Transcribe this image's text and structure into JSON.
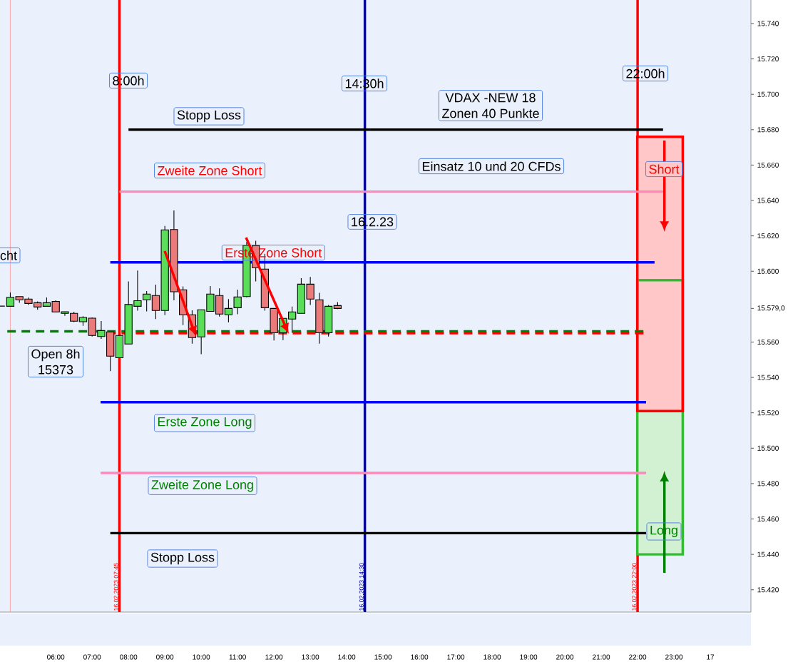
{
  "chart_data": {
    "type": "candlestick",
    "x": [
      "2023-02-16T04:30",
      "2023-02-16T04:45",
      "2023-02-16T05:00",
      "2023-02-16T05:15",
      "2023-02-16T05:30",
      "2023-02-16T05:45",
      "2023-02-16T06:00",
      "2023-02-16T06:15",
      "2023-02-16T06:30",
      "2023-02-16T06:45",
      "2023-02-16T07:00",
      "2023-02-16T07:15",
      "2023-02-16T07:30",
      "2023-02-16T07:45",
      "2023-02-16T08:00",
      "2023-02-16T08:15",
      "2023-02-16T08:30",
      "2023-02-16T08:45",
      "2023-02-16T09:00",
      "2023-02-16T09:15",
      "2023-02-16T09:30",
      "2023-02-16T09:45",
      "2023-02-16T10:00",
      "2023-02-16T10:15",
      "2023-02-16T10:30",
      "2023-02-16T10:45",
      "2023-02-16T11:00",
      "2023-02-16T11:15",
      "2023-02-16T11:30",
      "2023-02-16T11:45",
      "2023-02-16T12:00",
      "2023-02-16T12:15",
      "2023-02-16T12:30",
      "2023-02-16T12:45",
      "2023-02-16T13:00",
      "2023-02-16T13:15",
      "2023-02-16T13:30",
      "2023-02-16T13:45"
    ],
    "ohlc": [
      [
        15580.3,
        15580.3,
        15580.3,
        15580.3
      ],
      [
        15580.2,
        15588.0,
        15580.2,
        15585.3
      ],
      [
        15585.7,
        15585.7,
        15582.2,
        15583.9
      ],
      [
        15584.3,
        15585.2,
        15581.0,
        15581.8
      ],
      [
        15582.2,
        15583.0,
        15578.2,
        15579.8
      ],
      [
        15580.2,
        15585.2,
        15579.9,
        15582.2
      ],
      [
        15583.0,
        15583.6,
        15576.9,
        15577.0
      ],
      [
        15576.2,
        15577.1,
        15574.8,
        15577.1
      ],
      [
        15576.2,
        15577.1,
        15571.3,
        15571.8
      ],
      [
        15571.5,
        15574.6,
        15569.2,
        15573.9
      ],
      [
        15573.5,
        15573.9,
        15563.1,
        15563.7
      ],
      [
        15563.1,
        15571.9,
        15561.8,
        15566.5
      ],
      [
        15565.7,
        15565.7,
        15543.6,
        15552.0
      ],
      [
        15551.1,
        15563.7,
        15551.1,
        15563.7
      ],
      [
        15558.9,
        15594.3,
        15558.9,
        15581.2
      ],
      [
        15580.2,
        15600.4,
        15577.7,
        15583.4
      ],
      [
        15583.9,
        15588.8,
        15577.3,
        15587.1
      ],
      [
        15586.3,
        15592.4,
        15573.0,
        15577.8
      ],
      [
        15577.8,
        15625.6,
        15575.2,
        15623.4
      ],
      [
        15623.6,
        15634.4,
        15583.6,
        15588.4
      ],
      [
        15589.5,
        15591.4,
        15569.6,
        15575.4
      ],
      [
        15575.4,
        15577.9,
        15559.1,
        15562.5
      ],
      [
        15562.9,
        15578.2,
        15553.1,
        15578.2
      ],
      [
        15577.3,
        15591.6,
        15577.3,
        15587.1
      ],
      [
        15586.3,
        15590.3,
        15574.4,
        15575.8
      ],
      [
        15575.4,
        15584.3,
        15571.2,
        15579.0
      ],
      [
        15579.4,
        15589.6,
        15575.7,
        15585.5
      ],
      [
        15585.7,
        15616.5,
        15585.3,
        15614.6
      ],
      [
        15614.5,
        15617.2,
        15594.3,
        15602.0
      ],
      [
        15601.2,
        15609.9,
        15577.7,
        15579.4
      ],
      [
        15579.0,
        15579.0,
        15560.9,
        15565.2
      ],
      [
        15565.2,
        15573.4,
        15561.1,
        15573.4
      ],
      [
        15573.0,
        15580.0,
        15565.2,
        15577.0
      ],
      [
        15576.2,
        15596.1,
        15576.2,
        15592.7
      ],
      [
        15592.7,
        15596.8,
        15581.0,
        15584.3
      ],
      [
        15583.9,
        15587.8,
        15559.1,
        15565.2
      ],
      [
        15565.2,
        15581.0,
        15563.1,
        15580.2
      ],
      [
        15580.6,
        15582.6,
        15578.6,
        15579.0
      ]
    ],
    "colors": [
      "#000000",
      "#5ade5a",
      "#eb7b7b",
      "#eb7b7b",
      "#eb7b7b",
      "#5ade5a",
      "#eb7b7b",
      "#5ade5a",
      "#eb7b7b",
      "#5ade5a",
      "#eb7b7b",
      "#5ade5a",
      "#eb7b7b",
      "#5ade5a",
      "#5ade5a",
      "#5ade5a",
      "#5ade5a",
      "#eb7b7b",
      "#5ade5a",
      "#eb7b7b",
      "#eb7b7b",
      "#eb7b7b",
      "#5ade5a",
      "#5ade5a",
      "#eb7b7b",
      "#5ade5a",
      "#5ade5a",
      "#5ade5a",
      "#eb7b7b",
      "#eb7b7b",
      "#eb7b7b",
      "#5ade5a",
      "#5ade5a",
      "#5ade5a",
      "#eb7b7b",
      "#eb7b7b",
      "#5ade5a",
      "#eb7b7b"
    ],
    "series": [
      {
        "type": "bar",
        "color": "#33bb33",
        "x": [
          "2023-02-16T22:37"
        ],
        "base": [
          15440
        ],
        "values": [
          155
        ]
      },
      {
        "type": "bar",
        "color": "#ff0000",
        "x": [
          "2023-02-16T22:37"
        ],
        "base": [
          15521
        ],
        "values": [
          155
        ]
      },
      {
        "type": "line",
        "color": "#000000",
        "x": [
          "2023-02-16T08:00",
          "2023-02-16T22:42"
        ],
        "values": [
          15680,
          15680
        ]
      },
      {
        "type": "line",
        "color": "#ff88bb",
        "x": [
          "2023-02-16T07:45",
          "2023-02-16T22:42"
        ],
        "values": [
          15645,
          15645
        ]
      },
      {
        "type": "line",
        "color": "#0000ff",
        "x": [
          "2023-02-16T07:30",
          "2023-02-16T22:28"
        ],
        "values": [
          15605,
          15605
        ]
      },
      {
        "type": "line",
        "color": "#008000",
        "line_style": "dashed",
        "x": [
          "2023-02-16T04:40",
          "2023-02-16T22:12"
        ],
        "values": [
          15566,
          15566
        ]
      },
      {
        "type": "line",
        "color": "#ff0000",
        "line_style": "dashed",
        "x": [
          "2023-02-16T07:25",
          "2023-02-16T22:12"
        ],
        "values": [
          15565,
          15565
        ]
      },
      {
        "type": "line",
        "color": "#0000ff",
        "x": [
          "2023-02-16T07:14",
          "2023-02-16T22:14"
        ],
        "values": [
          15526,
          15526
        ]
      },
      {
        "type": "line",
        "color": "#ff88bb",
        "x": [
          "2023-02-16T07:14",
          "2023-02-16T22:14"
        ],
        "values": [
          15486,
          15486
        ]
      },
      {
        "type": "line",
        "color": "#000000",
        "x": [
          "2023-02-16T07:30",
          "2023-02-16T22:14"
        ],
        "values": [
          15452,
          15452
        ]
      }
    ],
    "ref_lines": [
      {
        "axis": "x",
        "value": "2023-02-16T04:45",
        "color": "#ff9999"
      },
      {
        "axis": "x",
        "value": "2023-02-16T07:45",
        "label": "16.02.2023 07:45",
        "color": "#ff0000"
      },
      {
        "axis": "x",
        "value": "2023-02-16T14:30",
        "label": "16.02.2023 14:30",
        "color": "#000099"
      },
      {
        "axis": "x",
        "value": "2023-02-16T22:00",
        "label": "16.02.2023 22:00",
        "color": "#ff0000"
      }
    ],
    "annotations": [
      "8:00h",
      "14:30h",
      "22:00h",
      "VDAX -NEW 18",
      "Zonen 40 Punkte",
      "Stopp Loss",
      "Zweite  Zone Short",
      "Einsatz 10 und 20 CFDs",
      "16.2.23",
      {
        "text": "Erste  Zone Short",
        "x": "2023-02-16T11:59",
        "y": 15605
      },
      "cht",
      "Open 8h",
      "15373",
      "Erste Zone Long",
      "Zweite Zone Long",
      "Stopp Loss",
      "Short",
      "Long"
    ],
    "xlim": [
      "2023-02-16T04:28",
      "2023-02-17T01:07"
    ],
    "ylim": [
      15407.4,
      15753.3
    ],
    "xticks": [
      {
        "value": "2023-02-16T06:00",
        "label": "06:00"
      },
      {
        "value": "2023-02-16T07:00",
        "label": "07:00"
      },
      {
        "value": "2023-02-16T08:00",
        "label": "08:00"
      },
      {
        "value": "2023-02-16T09:00",
        "label": "09:00"
      },
      {
        "value": "2023-02-16T10:00",
        "label": "10:00"
      },
      {
        "value": "2023-02-16T11:00",
        "label": "11:00"
      },
      {
        "value": "2023-02-16T12:00",
        "label": "12:00"
      },
      {
        "value": "2023-02-16T13:00",
        "label": "13:00"
      },
      {
        "value": "2023-02-16T14:00",
        "label": "14:00"
      },
      {
        "value": "2023-02-16T15:00",
        "label": "15:00"
      },
      {
        "value": "2023-02-16T16:00",
        "label": "16:00"
      },
      {
        "value": "2023-02-16T17:00",
        "label": "17:00"
      },
      {
        "value": "2023-02-16T18:00",
        "label": "18:00"
      },
      {
        "value": "2023-02-16T19:00",
        "label": "19:00"
      },
      {
        "value": "2023-02-16T20:00",
        "label": "20:00"
      },
      {
        "value": "2023-02-16T21:00",
        "label": "21:00"
      },
      {
        "value": "2023-02-16T22:00",
        "label": "22:00"
      },
      {
        "value": "2023-02-16T23:00",
        "label": "23:00"
      },
      {
        "value": "2023-02-17T00:00",
        "label": "17"
      }
    ],
    "yticks": [
      {
        "value": 15420,
        "label": "15.420"
      },
      {
        "value": 15440,
        "label": "15.440"
      },
      {
        "value": 15460,
        "label": "15.460"
      },
      {
        "value": 15480,
        "label": "15.480"
      },
      {
        "value": 15500,
        "label": "15.500"
      },
      {
        "value": 15520,
        "label": "15.520"
      },
      {
        "value": 15540,
        "label": "15.540"
      },
      {
        "value": 15560,
        "label": "15.560"
      },
      {
        "value": 15579,
        "label": "15.579,0"
      },
      {
        "value": 15600,
        "label": "15.600"
      },
      {
        "value": 15620,
        "label": "15.620"
      },
      {
        "value": 15640,
        "label": "15.640"
      },
      {
        "value": 15660,
        "label": "15.660"
      },
      {
        "value": 15680,
        "label": "15.680"
      },
      {
        "value": 15700,
        "label": "15.700"
      },
      {
        "value": 15720,
        "label": "15.720"
      },
      {
        "value": 15740,
        "label": "15.740"
      }
    ]
  }
}
